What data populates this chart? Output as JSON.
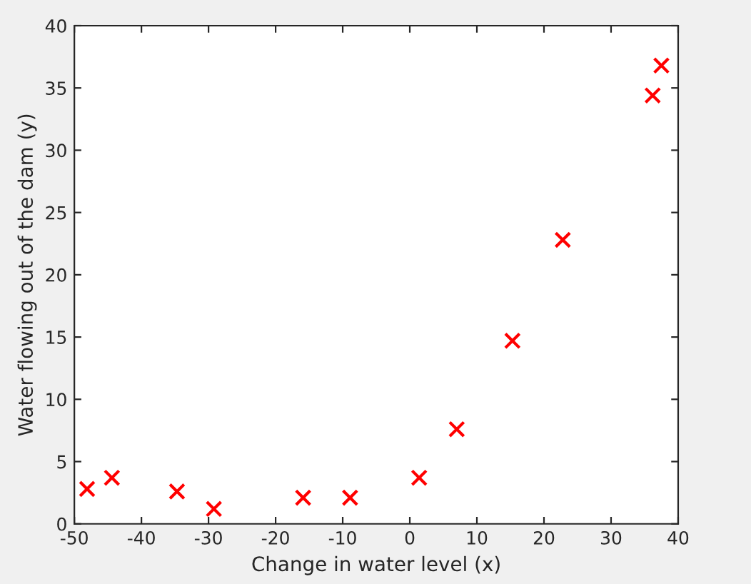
{
  "chart_data": {
    "type": "scatter",
    "xlabel": "Change in water level (x)",
    "ylabel": "Water flowing out of the dam (y)",
    "series": [
      {
        "color": "#ff0000",
        "x": [
          -15.9,
          -29.2,
          36.2,
          37.5,
          -48.1,
          -8.9,
          15.3,
          -34.7,
          1.4,
          -44.4,
          7.0,
          22.8
        ],
        "values": [
          2.1,
          1.2,
          34.4,
          36.8,
          2.8,
          2.1,
          14.7,
          2.6,
          3.7,
          3.7,
          7.6,
          22.8
        ]
      }
    ],
    "marker": "cross",
    "xlim": [
      -50,
      40
    ],
    "xticks": [
      -50,
      -40,
      -30,
      -20,
      -10,
      0,
      10,
      20,
      30,
      40
    ],
    "ylim": [
      0,
      40
    ],
    "yticks": [
      0,
      5,
      10,
      15,
      20,
      25,
      30,
      35,
      40
    ],
    "grid": false,
    "legend": false
  }
}
